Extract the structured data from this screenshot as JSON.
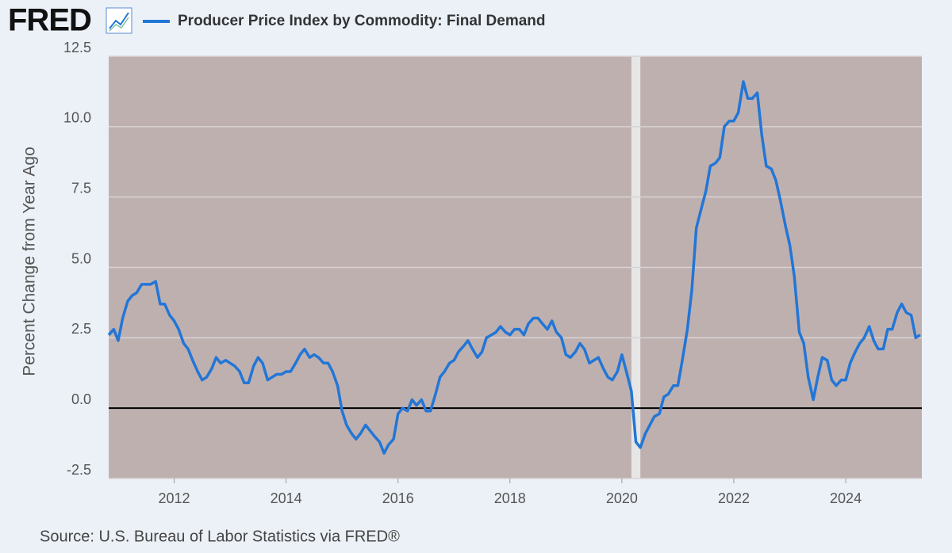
{
  "chart_data": {
    "type": "line",
    "logo": "FRED",
    "title": "Producer Price Index by Commodity: Final Demand",
    "ylabel": "Percent Change from Year Ago",
    "source": "Source: U.S. Bureau of Labor Statistics via FRED®",
    "xlim": [
      2010.83,
      2025.36
    ],
    "xticks": [
      2012,
      2014,
      2016,
      2018,
      2020,
      2022,
      2024
    ],
    "ylim": [
      -2.5,
      12.5
    ],
    "yticks": [
      -2.5,
      {
        "value": 0,
        "label": "0.0"
      },
      2.5,
      {
        "value": 5,
        "label": "5.0"
      },
      7.5,
      {
        "value": 10,
        "label": "10.0"
      },
      12.5
    ],
    "grid": true,
    "recessions": [
      [
        2020.17,
        2020.33
      ]
    ],
    "x": [
      2010.83,
      2010.92,
      2011.0,
      2011.08,
      2011.17,
      2011.25,
      2011.33,
      2011.42,
      2011.5,
      2011.58,
      2011.67,
      2011.75,
      2011.83,
      2011.92,
      2012.0,
      2012.08,
      2012.17,
      2012.25,
      2012.33,
      2012.42,
      2012.5,
      2012.58,
      2012.67,
      2012.75,
      2012.83,
      2012.92,
      2013.0,
      2013.08,
      2013.17,
      2013.25,
      2013.33,
      2013.42,
      2013.5,
      2013.58,
      2013.67,
      2013.75,
      2013.83,
      2013.92,
      2014.0,
      2014.08,
      2014.17,
      2014.25,
      2014.33,
      2014.42,
      2014.5,
      2014.58,
      2014.67,
      2014.75,
      2014.83,
      2014.92,
      2015.0,
      2015.08,
      2015.17,
      2015.25,
      2015.33,
      2015.42,
      2015.5,
      2015.58,
      2015.67,
      2015.75,
      2015.83,
      2015.92,
      2016.0,
      2016.08,
      2016.17,
      2016.25,
      2016.33,
      2016.42,
      2016.5,
      2016.58,
      2016.67,
      2016.75,
      2016.83,
      2016.92,
      2017.0,
      2017.08,
      2017.17,
      2017.25,
      2017.33,
      2017.42,
      2017.5,
      2017.58,
      2017.67,
      2017.75,
      2017.83,
      2017.92,
      2018.0,
      2018.08,
      2018.17,
      2018.25,
      2018.33,
      2018.42,
      2018.5,
      2018.58,
      2018.67,
      2018.75,
      2018.83,
      2018.92,
      2019.0,
      2019.08,
      2019.17,
      2019.25,
      2019.33,
      2019.42,
      2019.5,
      2019.58,
      2019.67,
      2019.75,
      2019.83,
      2019.92,
      2020.0,
      2020.08,
      2020.17,
      2020.25,
      2020.33,
      2020.42,
      2020.5,
      2020.58,
      2020.67,
      2020.75,
      2020.83,
      2020.92,
      2021.0,
      2021.08,
      2021.17,
      2021.25,
      2021.33,
      2021.42,
      2021.5,
      2021.58,
      2021.67,
      2021.75,
      2021.83,
      2021.92,
      2022.0,
      2022.08,
      2022.17,
      2022.25,
      2022.33,
      2022.42,
      2022.5,
      2022.58,
      2022.67,
      2022.75,
      2022.83,
      2022.92,
      2023.0,
      2023.08,
      2023.17,
      2023.25,
      2023.33,
      2023.42,
      2023.5,
      2023.58,
      2023.67,
      2023.75,
      2023.83,
      2023.92,
      2024.0,
      2024.08,
      2024.17,
      2024.25,
      2024.33,
      2024.42,
      2024.5,
      2024.58,
      2024.67,
      2024.75,
      2024.83,
      2024.92,
      2025.0,
      2025.08,
      2025.17,
      2025.25,
      2025.33
    ],
    "series": [
      {
        "name": "Producer Price Index by Commodity: Final Demand",
        "color": "#2276d6",
        "values": [
          2.6,
          2.8,
          2.4,
          3.2,
          3.8,
          4.0,
          4.1,
          4.4,
          4.4,
          4.4,
          4.5,
          3.7,
          3.7,
          3.3,
          3.1,
          2.8,
          2.3,
          2.1,
          1.7,
          1.3,
          1.0,
          1.1,
          1.4,
          1.8,
          1.6,
          1.7,
          1.6,
          1.5,
          1.3,
          0.9,
          0.9,
          1.5,
          1.8,
          1.6,
          1.0,
          1.1,
          1.2,
          1.2,
          1.3,
          1.3,
          1.6,
          1.9,
          2.1,
          1.8,
          1.9,
          1.8,
          1.6,
          1.6,
          1.3,
          0.8,
          -0.1,
          -0.6,
          -0.9,
          -1.1,
          -0.9,
          -0.6,
          -0.8,
          -1.0,
          -1.2,
          -1.6,
          -1.3,
          -1.1,
          -0.2,
          0.0,
          -0.1,
          0.3,
          0.1,
          0.3,
          -0.1,
          -0.1,
          0.5,
          1.1,
          1.3,
          1.6,
          1.7,
          2.0,
          2.2,
          2.4,
          2.1,
          1.8,
          2.0,
          2.5,
          2.6,
          2.7,
          2.9,
          2.7,
          2.6,
          2.8,
          2.8,
          2.6,
          3.0,
          3.2,
          3.2,
          3.0,
          2.8,
          3.1,
          2.7,
          2.5,
          1.9,
          1.8,
          2.0,
          2.3,
          2.1,
          1.6,
          1.7,
          1.8,
          1.4,
          1.1,
          1.0,
          1.3,
          1.9,
          1.3,
          0.6,
          -1.2,
          -1.4,
          -0.9,
          -0.6,
          -0.3,
          -0.2,
          0.4,
          0.5,
          0.8,
          0.8,
          1.7,
          2.8,
          4.2,
          6.4,
          7.1,
          7.7,
          8.6,
          8.7,
          8.9,
          10.0,
          10.2,
          10.2,
          10.5,
          11.6,
          11.0,
          11.0,
          11.2,
          9.7,
          8.6,
          8.5,
          8.1,
          7.4,
          6.5,
          5.8,
          4.7,
          2.7,
          2.3,
          1.1,
          0.3,
          1.1,
          1.8,
          1.7,
          1.0,
          0.8,
          1.0,
          1.0,
          1.6,
          2.0,
          2.3,
          2.5,
          2.9,
          2.4,
          2.1,
          2.1,
          2.8,
          2.8,
          3.4,
          3.7,
          3.4,
          3.3,
          2.5,
          2.6
        ]
      }
    ]
  }
}
